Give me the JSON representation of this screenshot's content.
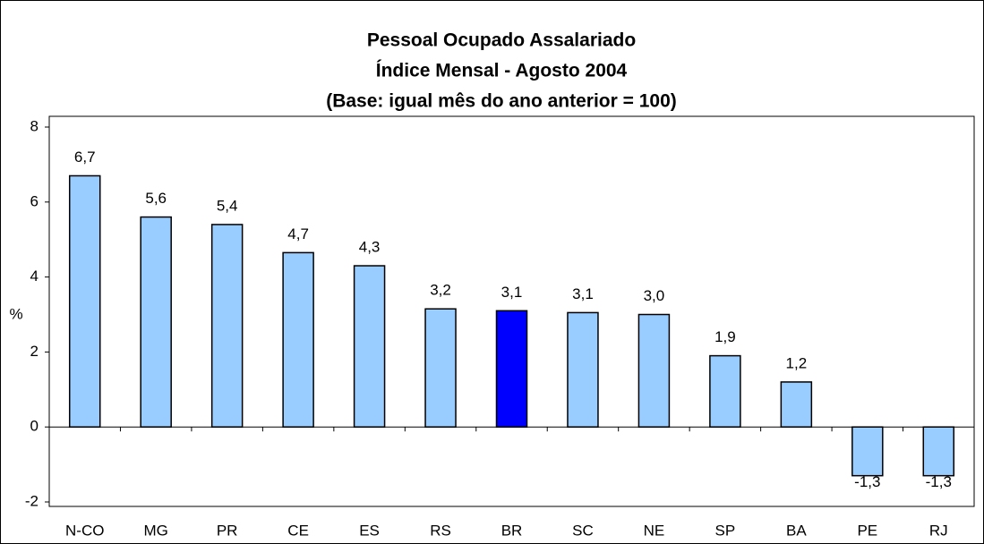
{
  "chart_data": {
    "type": "bar",
    "title": [
      "Pessoal Ocupado Assalariado",
      "Índice Mensal - Agosto 2004",
      "(Base: igual mês do ano anterior = 100)"
    ],
    "ylabel": "%",
    "categories": [
      "N-CO",
      "MG",
      "PR",
      "CE",
      "ES",
      "RS",
      "BR",
      "SC",
      "NE",
      "SP",
      "BA",
      "PE",
      "RJ"
    ],
    "values": [
      6.7,
      5.6,
      5.4,
      4.65,
      4.3,
      3.15,
      3.1,
      3.05,
      3.0,
      1.9,
      1.2,
      -1.3,
      -1.3
    ],
    "value_labels": [
      "6,7",
      "5,6",
      "5,4",
      "4,7",
      "4,3",
      "3,2",
      "3,1",
      "3,1",
      "3,0",
      "1,9",
      "1,2",
      "-1,3",
      "-1,3"
    ],
    "colors": [
      "#99ccff",
      "#99ccff",
      "#99ccff",
      "#99ccff",
      "#99ccff",
      "#99ccff",
      "#0000ff",
      "#99ccff",
      "#99ccff",
      "#99ccff",
      "#99ccff",
      "#99ccff",
      "#99ccff"
    ],
    "ylim": [
      -2,
      8
    ],
    "yticks": [
      -2,
      0,
      2,
      4,
      6,
      8
    ],
    "grid": false
  }
}
